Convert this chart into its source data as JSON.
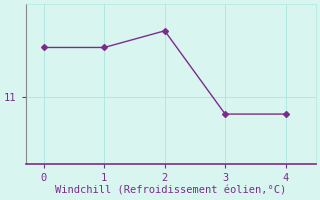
{
  "x": [
    0,
    1,
    2,
    3,
    4
  ],
  "y": [
    12.5,
    12.5,
    13.0,
    10.5,
    10.5
  ],
  "line_color": "#7b2d8b",
  "marker": "D",
  "marker_size": 3,
  "bg_color": "#d8f5f0",
  "xlabel": "Windchill (Refroidissement éolien,°C)",
  "xlabel_color": "#7b2d8b",
  "xlabel_fontsize": 7.5,
  "ytick_labels": [
    "11"
  ],
  "ytick_values": [
    11
  ],
  "xtick_values": [
    0,
    1,
    2,
    3,
    4
  ],
  "xlim": [
    -0.3,
    4.5
  ],
  "ylim": [
    9.0,
    13.8
  ],
  "grid_color": "#aee8e0",
  "spine_color_bottom": "#7b2d8b",
  "spine_color_left": "#888888",
  "spine_color_other": "#aee8e0",
  "tick_color": "#7b2d8b",
  "tick_fontsize": 7.5
}
